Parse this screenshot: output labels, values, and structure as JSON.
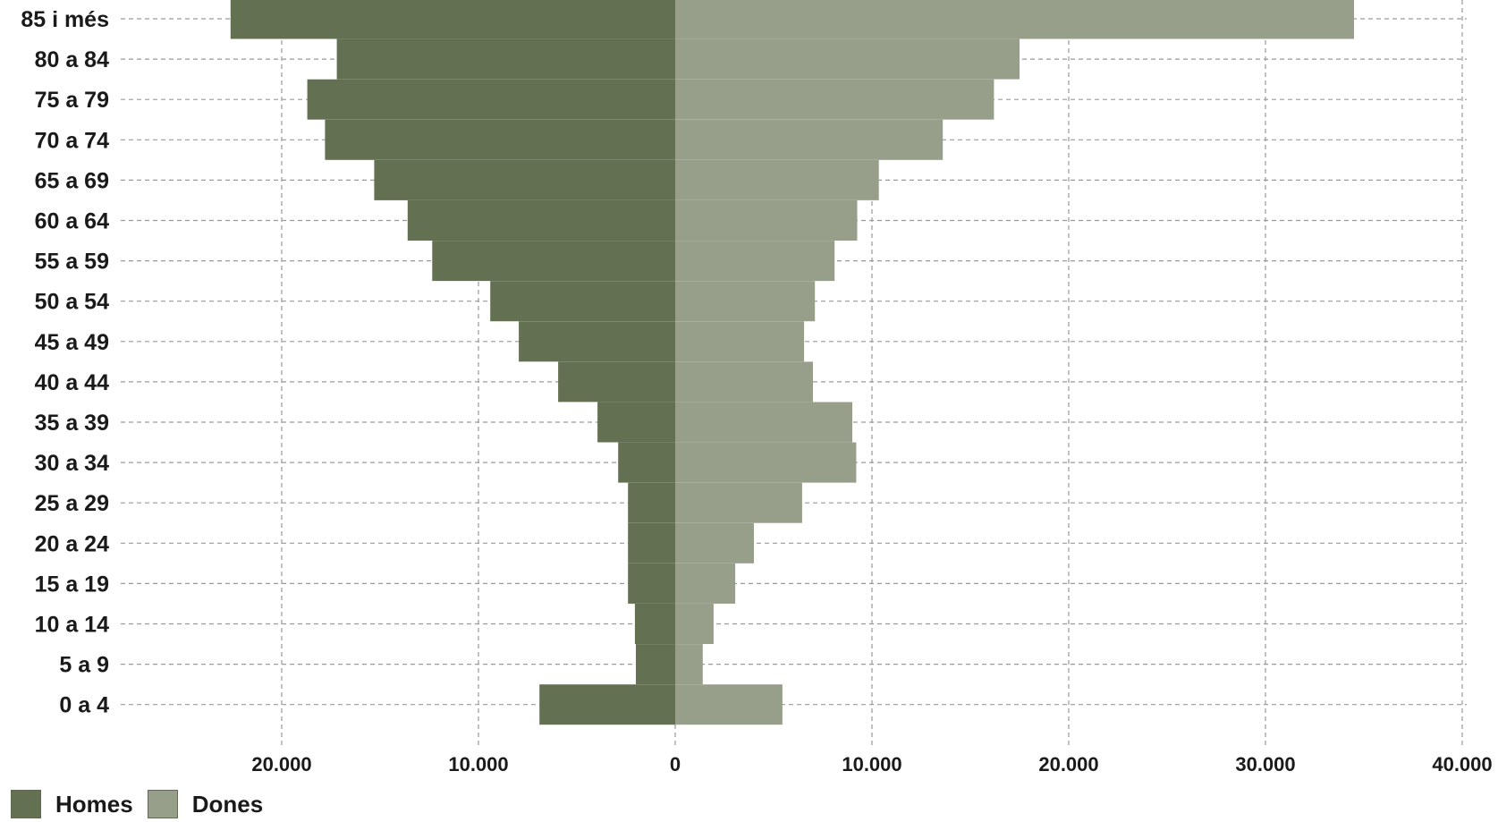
{
  "chart_data": {
    "type": "bar",
    "orientation": "horizontal",
    "variant": "population-pyramid",
    "categories": [
      "0 a 4",
      "5 a 9",
      "10 a 14",
      "15 a 19",
      "20 a 24",
      "25 a 29",
      "30 a 34",
      "35 a 39",
      "40 a 44",
      "45 a 49",
      "50 a 54",
      "55 a 59",
      "60 a 64",
      "65 a 69",
      "70 a 74",
      "75 a 79",
      "80 a 84",
      "85 i més"
    ],
    "series": [
      {
        "name": "Homes",
        "color": "#637052",
        "side": "left",
        "values": [
          6900,
          2000,
          2050,
          2400,
          2400,
          2400,
          2900,
          3950,
          5950,
          7950,
          9400,
          12350,
          13600,
          15300,
          17800,
          18700,
          17200,
          22600
        ]
      },
      {
        "name": "Dones",
        "color": "#979f8b",
        "side": "right",
        "values": [
          5450,
          1400,
          1950,
          3050,
          4000,
          6450,
          9200,
          9000,
          7000,
          6550,
          7100,
          8100,
          9250,
          10350,
          13600,
          16200,
          17500,
          34500
        ]
      }
    ],
    "xlim": [
      -29000,
      40000
    ],
    "x_ticks": [
      {
        "value": -20000,
        "label": "20.000"
      },
      {
        "value": -10000,
        "label": "10.000"
      },
      {
        "value": 0,
        "label": "0"
      },
      {
        "value": 10000,
        "label": "10.000"
      },
      {
        "value": 20000,
        "label": "20.000"
      },
      {
        "value": 30000,
        "label": "30.000"
      },
      {
        "value": 40000,
        "label": "40.000"
      }
    ],
    "grid": "dashed",
    "legend_position": "bottom-left",
    "title": "",
    "xlabel": "",
    "ylabel": ""
  },
  "legend": {
    "items": [
      {
        "label": "Homes",
        "color": "#637052"
      },
      {
        "label": "Dones",
        "color": "#979f8b"
      }
    ]
  }
}
